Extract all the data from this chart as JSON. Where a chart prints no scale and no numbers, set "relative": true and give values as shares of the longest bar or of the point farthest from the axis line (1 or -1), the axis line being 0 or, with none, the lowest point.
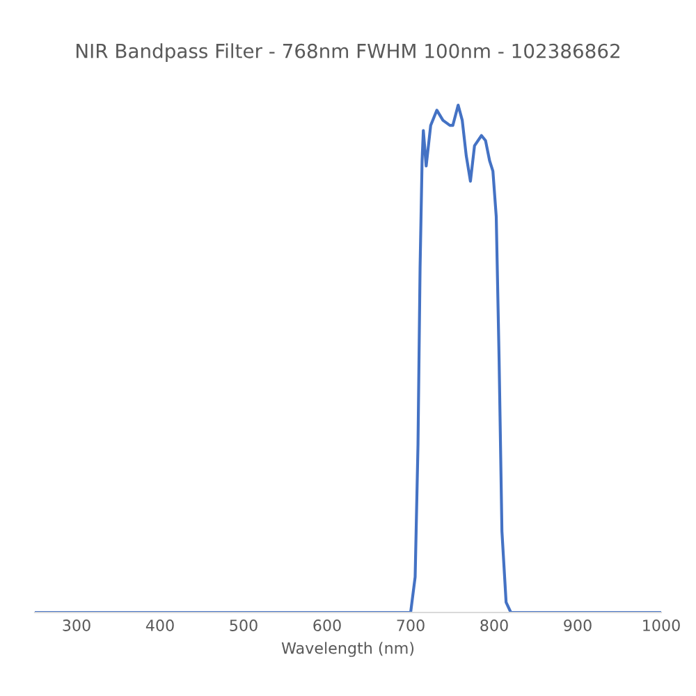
{
  "chart_data": {
    "type": "line",
    "title": "NIR Bandpass Filter - 768nm FWHM 100nm - 102386862",
    "xlabel": "Wavelength (nm)",
    "relative": true,
    "tick_labels": "x",
    "xlim": [
      250,
      1000
    ],
    "xticks": [
      300,
      400,
      500,
      600,
      700,
      800,
      900,
      1000
    ],
    "series": [
      {
        "color": "#4472c4",
        "x": [
          250,
          400,
          600,
          680,
          700,
          705.4,
          708.8,
          711.3,
          713.7,
          715.2,
          718.6,
          724,
          731.4,
          738.7,
          747,
          750.5,
          756.9,
          761.8,
          766.6,
          771.6,
          776.5,
          784.8,
          789.7,
          794.6,
          798.5,
          802.5,
          805.9,
          809.3,
          814.3,
          820,
          900,
          1000
        ],
        "values": [
          0,
          0,
          0,
          0,
          0,
          0.07,
          0.33,
          0.68,
          0.89,
          0.95,
          0.88,
          0.96,
          0.99,
          0.97,
          0.96,
          0.96,
          1,
          0.97,
          0.9,
          0.85,
          0.92,
          0.94,
          0.93,
          0.89,
          0.87,
          0.78,
          0.5,
          0.16,
          0.02,
          0,
          0,
          0
        ]
      }
    ]
  }
}
